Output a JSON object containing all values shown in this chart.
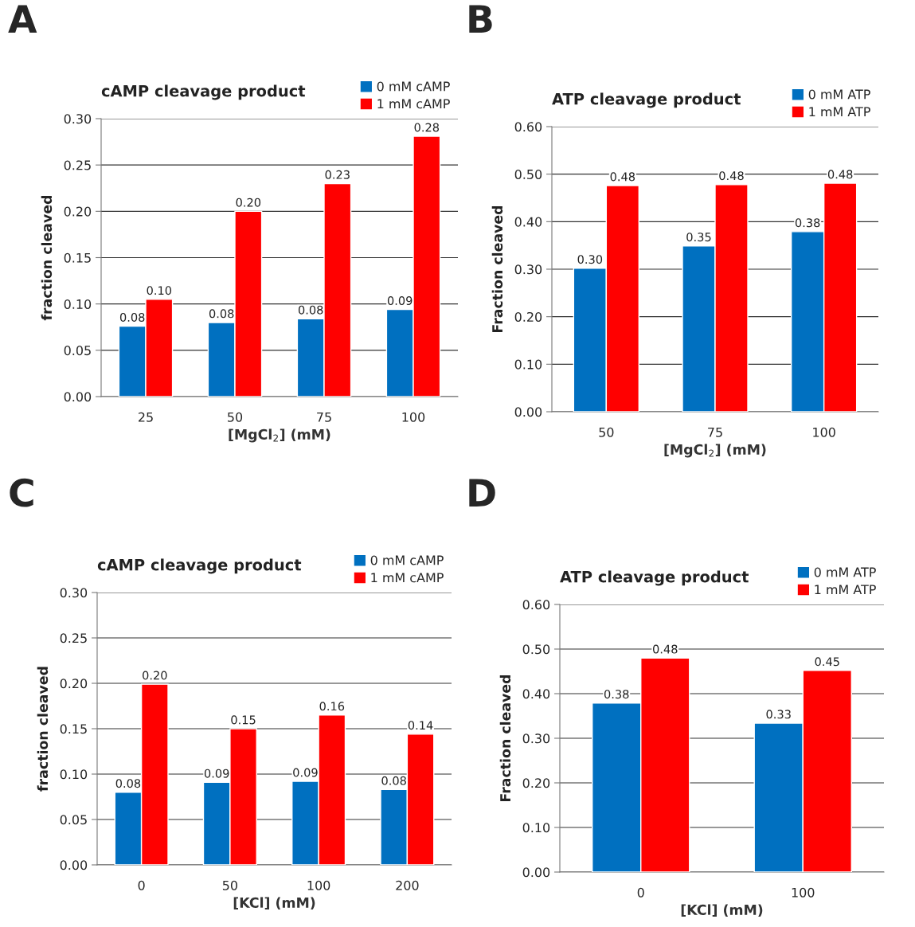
{
  "chart_data": [
    {
      "type": "bar",
      "title": "cAMP cleavage product",
      "xlabel": "[MgCl$_{2}$] (mM)",
      "ylabel": "fraction cleaved",
      "annotations": [
        "A"
      ],
      "categories": [
        "25",
        "50",
        "75",
        "100"
      ],
      "series": [
        {
          "name": "0 mM cAMP",
          "color": "#0070c0",
          "values": [
            0.076,
            0.08,
            0.084,
            0.094
          ],
          "value_labels": [
            "0.08",
            "0.08",
            "0.08",
            "0.09"
          ]
        },
        {
          "name": "1 mM cAMP",
          "color": "#ff0000",
          "values": [
            0.105,
            0.2,
            0.23,
            0.281
          ],
          "value_labels": [
            "0.10",
            "0.20",
            "0.23",
            "0.28"
          ]
        }
      ],
      "ylim": [
        0,
        0.3
      ],
      "yticks": [
        {
          "value": 0,
          "label": "0.00"
        },
        {
          "value": 0.05,
          "label": "0.05"
        },
        {
          "value": 0.1,
          "label": "0.10"
        },
        {
          "value": 0.15,
          "label": "0.15"
        },
        {
          "value": 0.2,
          "label": "0.20"
        },
        {
          "value": 0.25,
          "label": "0.25"
        },
        {
          "value": 0.3,
          "label": "0.30"
        }
      ],
      "grid": "y",
      "legend": "top right"
    },
    {
      "type": "bar",
      "title": "ATP cleavage product",
      "xlabel": "[MgCl$_{2}$] (mM)",
      "ylabel": "Fraction cleaved",
      "annotations": [
        "B"
      ],
      "categories": [
        "50",
        "75",
        "100"
      ],
      "series": [
        {
          "name": "0 mM ATP",
          "color": "#0070c0",
          "values": [
            0.302,
            0.349,
            0.379
          ],
          "value_labels": [
            "0.30",
            "0.35",
            "0.38"
          ]
        },
        {
          "name": "1 mM ATP",
          "color": "#ff0000",
          "values": [
            0.476,
            0.478,
            0.481
          ],
          "value_labels": [
            "0.48",
            "0.48",
            "0.48"
          ]
        }
      ],
      "ylim": [
        0,
        0.6
      ],
      "yticks": [
        {
          "value": 0,
          "label": "0.00"
        },
        {
          "value": 0.1,
          "label": "0.10"
        },
        {
          "value": 0.2,
          "label": "0.20"
        },
        {
          "value": 0.3,
          "label": "0.30"
        },
        {
          "value": 0.4,
          "label": "0.40"
        },
        {
          "value": 0.5,
          "label": "0.50"
        },
        {
          "value": 0.6,
          "label": "0.60"
        }
      ],
      "grid": "y",
      "legend": "top right"
    },
    {
      "type": "bar",
      "title": "cAMP cleavage product",
      "xlabel": "[KCl] (mM)",
      "ylabel": "fraction cleaved",
      "annotations": [
        "C"
      ],
      "categories": [
        "0",
        "50",
        "100",
        "200"
      ],
      "series": [
        {
          "name": "0 mM cAMP",
          "color": "#0070c0",
          "values": [
            0.08,
            0.091,
            0.092,
            0.083
          ],
          "value_labels": [
            "0.08",
            "0.09",
            "0.09",
            "0.08"
          ]
        },
        {
          "name": "1 mM cAMP",
          "color": "#ff0000",
          "values": [
            0.199,
            0.15,
            0.165,
            0.144
          ],
          "value_labels": [
            "0.20",
            "0.15",
            "0.16",
            "0.14"
          ]
        }
      ],
      "ylim": [
        0,
        0.3
      ],
      "yticks": [
        {
          "value": 0,
          "label": "0.00"
        },
        {
          "value": 0.05,
          "label": "0.05"
        },
        {
          "value": 0.1,
          "label": "0.10"
        },
        {
          "value": 0.15,
          "label": "0.15"
        },
        {
          "value": 0.2,
          "label": "0.20"
        },
        {
          "value": 0.25,
          "label": "0.25"
        },
        {
          "value": 0.3,
          "label": "0.30"
        }
      ],
      "grid": "y",
      "legend": "top right"
    },
    {
      "type": "bar",
      "title": "ATP cleavage product",
      "xlabel": "[KCl] (mM)",
      "ylabel": "Fraction cleaved",
      "annotations": [
        "D"
      ],
      "categories": [
        "0",
        "100"
      ],
      "series": [
        {
          "name": "0 mM ATP",
          "color": "#0070c0",
          "values": [
            0.379,
            0.334
          ],
          "value_labels": [
            "0.38",
            "0.33"
          ]
        },
        {
          "name": "1 mM ATP",
          "color": "#ff0000",
          "values": [
            0.48,
            0.452
          ],
          "value_labels": [
            "0.48",
            "0.45"
          ]
        }
      ],
      "ylim": [
        0,
        0.6
      ],
      "yticks": [
        {
          "value": 0,
          "label": "0.00"
        },
        {
          "value": 0.1,
          "label": "0.10"
        },
        {
          "value": 0.2,
          "label": "0.20"
        },
        {
          "value": 0.3,
          "label": "0.30"
        },
        {
          "value": 0.4,
          "label": "0.40"
        },
        {
          "value": 0.5,
          "label": "0.50"
        },
        {
          "value": 0.6,
          "label": "0.60"
        }
      ],
      "grid": "y",
      "legend": "top right"
    }
  ]
}
